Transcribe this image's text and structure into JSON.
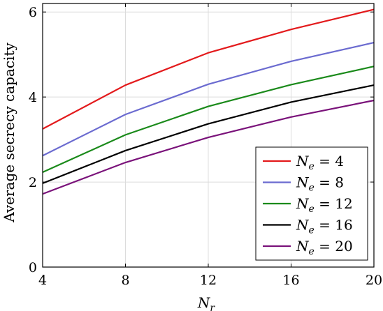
{
  "chart_data": {
    "type": "line",
    "title": "",
    "xlabel": "N_r",
    "ylabel": "Average secrecy capacity",
    "x": [
      4,
      8,
      12,
      16,
      20
    ],
    "xticks": [
      "4",
      "8",
      "12",
      "16",
      "20"
    ],
    "yticks": [
      "0",
      "2",
      "4",
      "6"
    ],
    "xlim": [
      4,
      20
    ],
    "ylim": [
      0,
      6.2
    ],
    "grid": true,
    "legend_position": "bottom-right",
    "series": [
      {
        "name": "N_e = 4",
        "legend_sub": "e",
        "legend_value": "4",
        "color": "#e31a1c",
        "values": [
          3.25,
          4.28,
          5.04,
          5.59,
          6.06
        ]
      },
      {
        "name": "N_e = 8",
        "legend_sub": "e",
        "legend_value": "8",
        "color": "#6b6bd0",
        "values": [
          2.62,
          3.59,
          4.3,
          4.84,
          5.28
        ]
      },
      {
        "name": "N_e = 12",
        "legend_sub": "e",
        "legend_value": "12",
        "color": "#1a8a1a",
        "values": [
          2.23,
          3.11,
          3.78,
          4.29,
          4.72
        ]
      },
      {
        "name": "N_e = 16",
        "legend_sub": "e",
        "legend_value": "16",
        "color": "#000000",
        "values": [
          1.97,
          2.74,
          3.37,
          3.88,
          4.28
        ]
      },
      {
        "name": "N_e = 20",
        "legend_sub": "e",
        "legend_value": "20",
        "color": "#7a127a",
        "values": [
          1.72,
          2.46,
          3.05,
          3.53,
          3.92
        ]
      }
    ]
  }
}
